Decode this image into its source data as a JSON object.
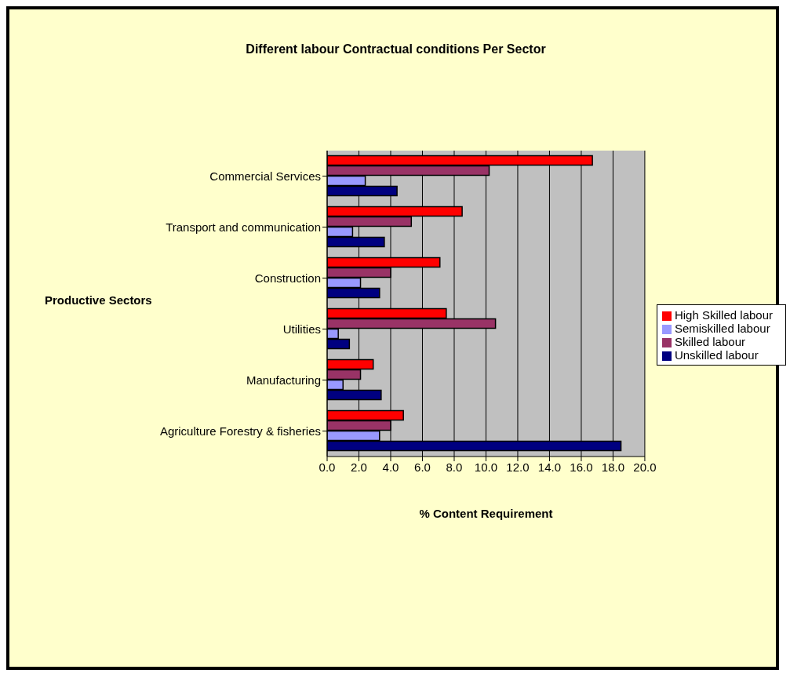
{
  "chart_data": {
    "type": "bar",
    "orientation": "horizontal",
    "title": "Different labour Contractual conditions Per Sector",
    "xlabel": "% Content Requirement",
    "ylabel": "Productive Sectors",
    "categories": [
      "Commercial Services",
      "Transport and communication",
      "Construction",
      "Utilities",
      "Manufacturing",
      "Agriculture Forestry & fisheries"
    ],
    "series": [
      {
        "name": "High Skilled labour",
        "color": "#ff0000",
        "values": [
          16.7,
          8.5,
          7.1,
          7.5,
          2.9,
          4.8
        ]
      },
      {
        "name": "Skilled labour",
        "color": "#993366",
        "values": [
          10.2,
          5.3,
          4.0,
          10.6,
          2.1,
          4.0
        ]
      },
      {
        "name": "Semiskilled labour",
        "color": "#9999ff",
        "values": [
          2.4,
          1.6,
          2.1,
          0.7,
          1.0,
          3.3
        ]
      },
      {
        "name": "Unskilled labour",
        "color": "#000080",
        "values": [
          4.4,
          3.6,
          3.3,
          1.4,
          3.4,
          18.5
        ]
      }
    ],
    "xlim": [
      0,
      20
    ],
    "xticks": [
      {
        "value": 0,
        "label": "0.0"
      },
      {
        "value": 2,
        "label": "2.0"
      },
      {
        "value": 4,
        "label": "4.0"
      },
      {
        "value": 6,
        "label": "6.0"
      },
      {
        "value": 8,
        "label": "8.0"
      },
      {
        "value": 10,
        "label": "10.0"
      },
      {
        "value": 12,
        "label": "12.0"
      },
      {
        "value": 14,
        "label": "14.0"
      },
      {
        "value": 16,
        "label": "16.0"
      },
      {
        "value": 18,
        "label": "18.0"
      },
      {
        "value": 20,
        "label": "20.0"
      }
    ],
    "grid": "x",
    "legend": "right"
  }
}
